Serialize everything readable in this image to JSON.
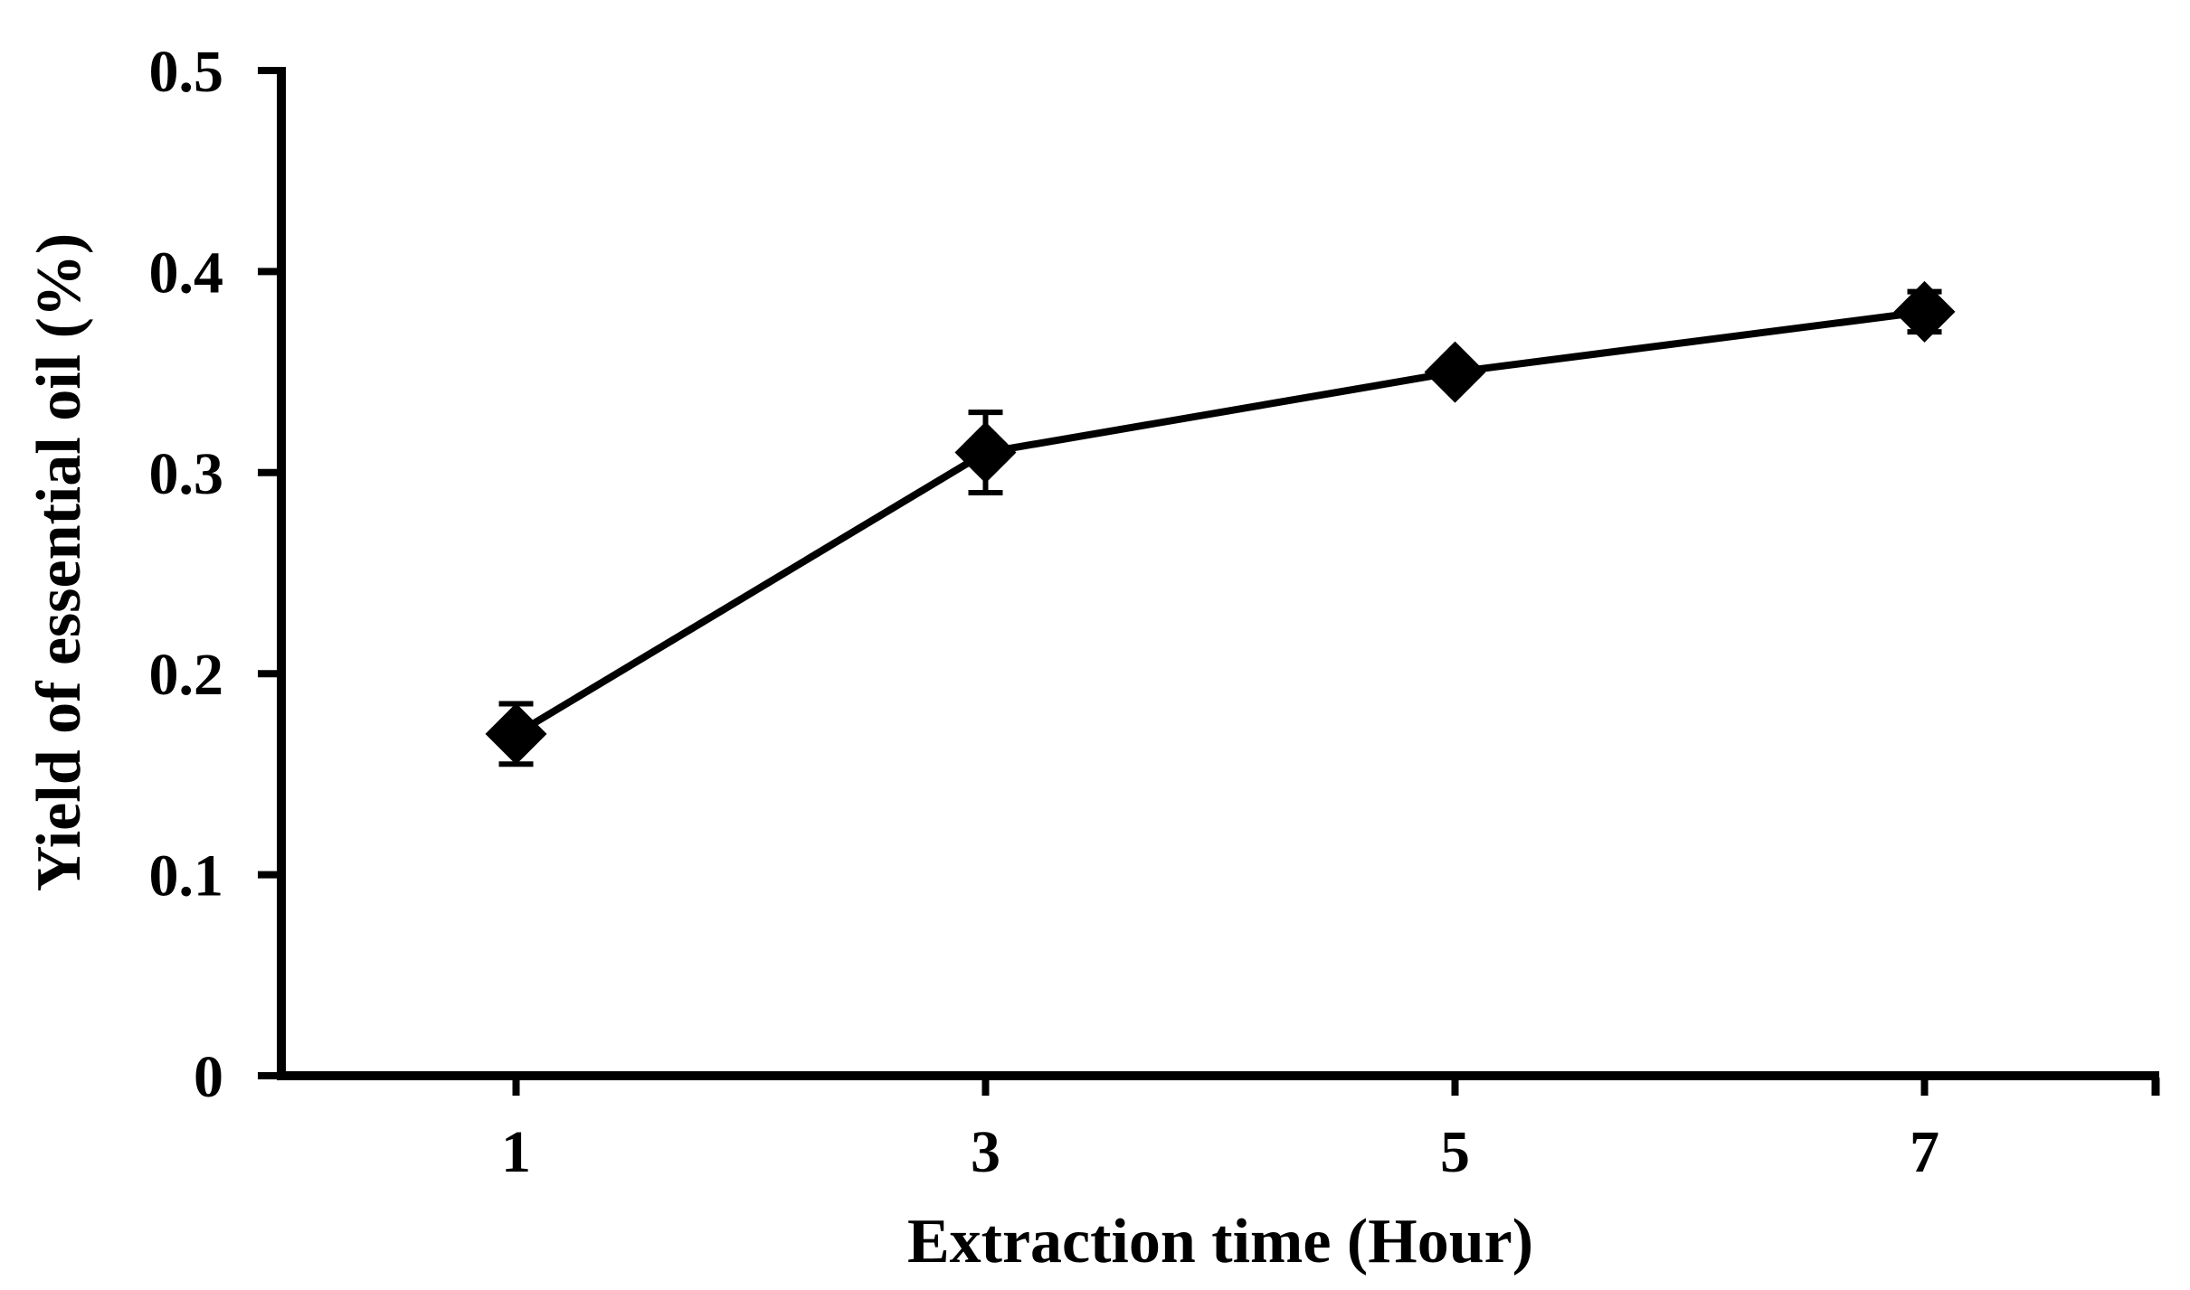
{
  "figure": {
    "background_color": "#ffffff",
    "ink_color": "#000000"
  },
  "chart_data": {
    "type": "line",
    "title": "",
    "xlabel": "Extraction time (Hour)",
    "ylabel": "Yield of essential oil (%)",
    "categories": [
      "1",
      "3",
      "5",
      "7"
    ],
    "x": [
      1,
      3,
      5,
      7
    ],
    "series": [
      {
        "name": "Yield of essential oil",
        "values": [
          0.17,
          0.31,
          0.35,
          0.38
        ],
        "y_err": [
          0.015,
          0.02,
          0.005,
          0.01
        ]
      }
    ],
    "marker": "diamond",
    "marker_color": "#000000",
    "line_color": "#000000",
    "ylim": [
      0,
      0.5
    ],
    "yticks": [
      {
        "value": 0,
        "label": "0"
      },
      {
        "value": 0.1,
        "label": "0.1"
      },
      {
        "value": 0.2,
        "label": "0.2"
      },
      {
        "value": 0.3,
        "label": "0.3"
      },
      {
        "value": 0.4,
        "label": "0.4"
      },
      {
        "value": 0.5,
        "label": "0.5"
      }
    ],
    "grid": false,
    "legend_position": "none",
    "error_bars": true
  }
}
